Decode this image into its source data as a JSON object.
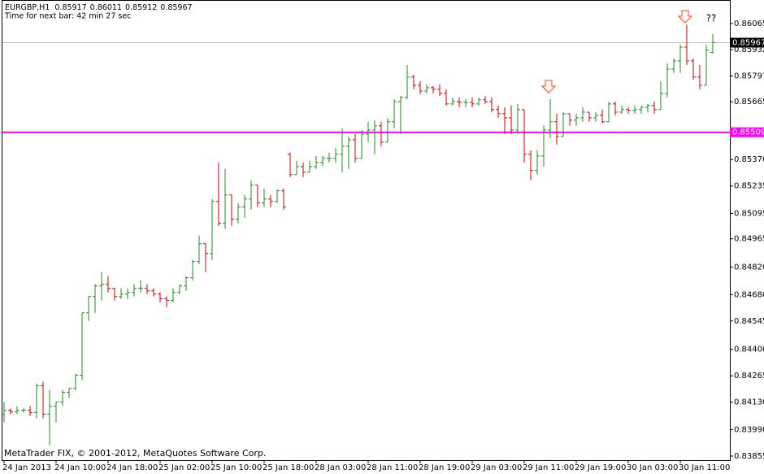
{
  "chart_data": {
    "type": "ohlc",
    "info": "Time for next bar: 42 min 27 sec",
    "footer": "MetaTrader FIX, © 2001-2012, MetaQuotes Software Corp.",
    "categories": [
      "24 Jan 2013",
      null,
      null,
      null,
      null,
      null,
      null,
      null,
      "24 Jan 10:00",
      null,
      null,
      null,
      null,
      null,
      null,
      null,
      "24 Jan 18:00",
      null,
      null,
      null,
      null,
      null,
      null,
      null,
      "25 Jan 02:00",
      null,
      null,
      null,
      null,
      null,
      null,
      null,
      "25 Jan 10:00",
      null,
      null,
      null,
      null,
      null,
      null,
      null,
      "25 Jan 18:00",
      null,
      null,
      null,
      null,
      null,
      null,
      null,
      "28 Jan 03:00",
      null,
      null,
      null,
      null,
      null,
      null,
      null,
      "28 Jan 11:00",
      null,
      null,
      null,
      null,
      null,
      null,
      null,
      "28 Jan 19:00",
      null,
      null,
      null,
      null,
      null,
      null,
      null,
      "29 Jan 03:00",
      null,
      null,
      null,
      null,
      null,
      null,
      null,
      "29 Jan 11:00",
      null,
      null,
      null,
      null,
      null,
      null,
      null,
      "29 Jan 19:00",
      null,
      null,
      null,
      null,
      null,
      null,
      null,
      "30 Jan 03:00",
      null,
      null,
      null,
      null,
      null,
      null,
      null,
      "30 Jan 11:00",
      null,
      null,
      null,
      null,
      null
    ],
    "series": [
      {
        "name": "EURGBP,H1",
        "up_color": "#1f8a1f",
        "down_color": "#cc0000",
        "open": [
          0.84069,
          0.84089,
          0.84081,
          0.84089,
          0.84089,
          0.84077,
          0.84214,
          0.84069,
          0.8411,
          0.84131,
          0.84181,
          0.84201,
          0.84268,
          0.84587,
          0.8467,
          0.84724,
          0.84733,
          0.84712,
          0.8467,
          0.84683,
          0.84691,
          0.84712,
          0.84712,
          0.84699,
          0.84683,
          0.84658,
          0.8465,
          0.84691,
          0.84724,
          0.84766,
          0.84849,
          0.8494,
          0.8489,
          0.85156,
          0.85044,
          0.85189,
          0.85065,
          0.85127,
          0.85168,
          0.85239,
          0.85148,
          0.85168,
          0.85156,
          0.8521,
          0.85397,
          0.85293,
          0.85334,
          0.85305,
          0.85334,
          0.85355,
          0.85376,
          0.85376,
          0.85397,
          0.85438,
          0.85471,
          0.85376,
          0.855,
          0.85521,
          0.85542,
          0.85459,
          0.85563,
          0.85666,
          0.85687,
          0.85791,
          0.85749,
          0.8572,
          0.85737,
          0.85729,
          0.85708,
          0.85654,
          0.85666,
          0.85662,
          0.85662,
          0.85654,
          0.85675,
          0.85666,
          0.85625,
          0.85604,
          0.85583,
          0.85521,
          0.85625,
          0.85397,
          0.85314,
          0.85388,
          0.85521,
          0.85563,
          0.85488,
          0.85604,
          0.85571,
          0.85583,
          0.85612,
          0.85583,
          0.85596,
          0.85563,
          0.85654,
          0.85612,
          0.85625,
          0.85621,
          0.85625,
          0.85637,
          0.85646,
          0.85625,
          0.85708,
          0.85832,
          0.85874,
          0.85944,
          0.85874,
          0.85791,
          0.85749,
          0.85917
        ],
        "high": [
          0.84131,
          0.84098,
          0.8411,
          0.84102,
          0.8411,
          0.84226,
          0.84235,
          0.84193,
          0.84131,
          0.84193,
          0.84201,
          0.84276,
          0.84587,
          0.8467,
          0.84733,
          0.84795,
          0.84774,
          0.84712,
          0.84712,
          0.84712,
          0.84733,
          0.84753,
          0.84733,
          0.84712,
          0.84691,
          0.8467,
          0.84712,
          0.84733,
          0.84774,
          0.84857,
          0.84982,
          0.8494,
          0.85168,
          0.85355,
          0.85322,
          0.85189,
          0.85148,
          0.85189,
          0.85264,
          0.85239,
          0.85222,
          0.85189,
          0.85218,
          0.85222,
          0.85405,
          0.85363,
          0.85355,
          0.85363,
          0.85388,
          0.85388,
          0.85405,
          0.8543,
          0.85529,
          0.85488,
          0.855,
          0.85521,
          0.85563,
          0.85571,
          0.85563,
          0.85583,
          0.85679,
          0.85695,
          0.85853,
          0.85803,
          0.8577,
          0.85753,
          0.85745,
          0.85753,
          0.85729,
          0.85687,
          0.85687,
          0.85679,
          0.85687,
          0.85687,
          0.85695,
          0.85687,
          0.85646,
          0.85637,
          0.85646,
          0.85654,
          0.85625,
          0.85417,
          0.85417,
          0.85542,
          0.85679,
          0.85604,
          0.85612,
          0.85604,
          0.85604,
          0.85637,
          0.85612,
          0.85612,
          0.85625,
          0.85666,
          0.85666,
          0.85646,
          0.85637,
          0.85646,
          0.85646,
          0.85654,
          0.85666,
          0.8577,
          0.85861,
          0.85886,
          0.85957,
          0.8606,
          0.85886,
          0.85853,
          0.85957,
          0.86011
        ],
        "low": [
          0.84027,
          0.84069,
          0.84069,
          0.84077,
          0.8406,
          0.84048,
          0.84048,
          0.83911,
          0.84027,
          0.8411,
          0.84152,
          0.84193,
          0.84243,
          0.84546,
          0.84587,
          0.8465,
          0.84691,
          0.8465,
          0.84658,
          0.84658,
          0.8467,
          0.84691,
          0.84683,
          0.8467,
          0.84641,
          0.84616,
          0.84641,
          0.84683,
          0.84699,
          0.84753,
          0.84836,
          0.84795,
          0.84857,
          0.85031,
          0.85015,
          0.85031,
          0.85044,
          0.85073,
          0.85114,
          0.85127,
          0.85127,
          0.85127,
          0.85148,
          0.85114,
          0.8528,
          0.85293,
          0.8528,
          0.85305,
          0.85322,
          0.85338,
          0.85355,
          0.85355,
          0.85305,
          0.85322,
          0.85355,
          0.85376,
          0.85459,
          0.85397,
          0.85438,
          0.85459,
          0.85529,
          0.855,
          0.85679,
          0.85729,
          0.85704,
          0.85708,
          0.85708,
          0.85695,
          0.85646,
          0.85646,
          0.85637,
          0.85637,
          0.85637,
          0.85646,
          0.85654,
          0.85612,
          0.85583,
          0.855,
          0.855,
          0.855,
          0.85355,
          0.85264,
          0.85293,
          0.85334,
          0.8548,
          0.85446,
          0.85488,
          0.85542,
          0.85542,
          0.85563,
          0.85563,
          0.85563,
          0.85554,
          0.85563,
          0.85596,
          0.85604,
          0.85604,
          0.85604,
          0.85604,
          0.85612,
          0.85604,
          0.85625,
          0.85687,
          0.85812,
          0.85812,
          0.85853,
          0.85778,
          0.85729,
          0.85749,
          0.85912
        ],
        "close": [
          0.84089,
          0.84081,
          0.84089,
          0.84089,
          0.84077,
          0.84214,
          0.84069,
          0.8411,
          0.84131,
          0.84181,
          0.84201,
          0.84268,
          0.84587,
          0.8467,
          0.84724,
          0.84733,
          0.84712,
          0.8467,
          0.84683,
          0.84691,
          0.84712,
          0.84712,
          0.84699,
          0.84683,
          0.84658,
          0.8465,
          0.84691,
          0.84724,
          0.84766,
          0.84849,
          0.8494,
          0.8489,
          0.85156,
          0.85044,
          0.85189,
          0.85065,
          0.85127,
          0.85168,
          0.85239,
          0.85148,
          0.85168,
          0.85156,
          0.8521,
          0.85127,
          0.85293,
          0.85334,
          0.85305,
          0.85334,
          0.85355,
          0.85376,
          0.85376,
          0.85397,
          0.85438,
          0.85471,
          0.85376,
          0.855,
          0.85521,
          0.85542,
          0.85459,
          0.85563,
          0.85666,
          0.85687,
          0.85791,
          0.85749,
          0.8572,
          0.85737,
          0.85729,
          0.85708,
          0.85654,
          0.85666,
          0.85662,
          0.85662,
          0.85654,
          0.85675,
          0.85666,
          0.85625,
          0.85604,
          0.85583,
          0.85521,
          0.85625,
          0.85397,
          0.85314,
          0.85388,
          0.85521,
          0.85563,
          0.85488,
          0.85604,
          0.85571,
          0.85583,
          0.85612,
          0.85583,
          0.85596,
          0.85563,
          0.85654,
          0.85612,
          0.85625,
          0.85621,
          0.85625,
          0.85637,
          0.85646,
          0.85625,
          0.85708,
          0.85832,
          0.85874,
          0.85944,
          0.85874,
          0.85791,
          0.85749,
          0.85928,
          0.85967
        ]
      }
    ],
    "ylim": [
      0.83834,
      0.86185
    ],
    "yticks": [
      0.86065,
      0.85932,
      0.85797,
      0.85665,
      {
        "value": 0.8537,
        "label": "0.85370"
      },
      0.85235,
      0.85095,
      0.84965,
      {
        "value": 0.8482,
        "label": "0.84820"
      },
      {
        "value": 0.8468,
        "label": "0.84680"
      },
      0.84545,
      {
        "value": 0.844,
        "label": "0.84400"
      },
      0.84265,
      {
        "value": 0.8413,
        "label": "0.84130"
      },
      {
        "value": 0.8399,
        "label": "0.83990"
      },
      0.83855
    ],
    "hlines": [
      {
        "value": 0.85509,
        "color": "#ff00ff"
      }
    ],
    "bid_line": {
      "value": 0.85967,
      "color": "#c0c0c0"
    },
    "annotations": [
      {
        "text": "??"
      }
    ],
    "grid": false
  }
}
